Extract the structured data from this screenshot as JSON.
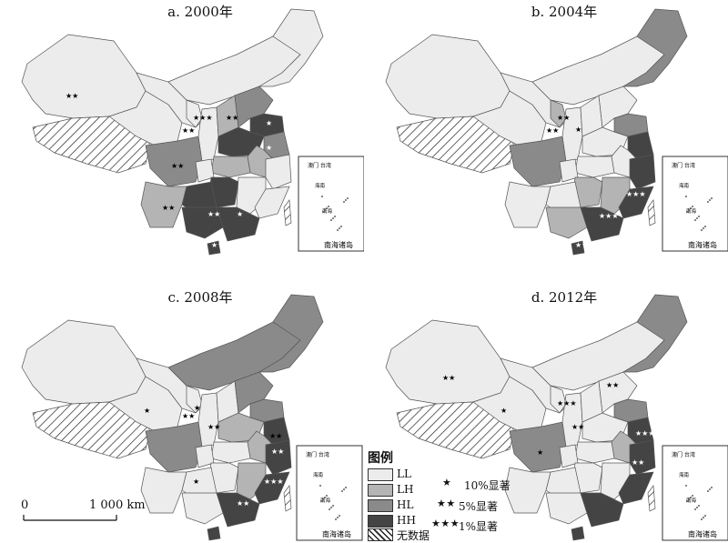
{
  "colors": {
    "LL": "#ececec",
    "LH": "#b4b4b4",
    "HL": "#8a8a8a",
    "HH": "#444444",
    "no_data": "#ffffff",
    "border": "#555555"
  },
  "panels": [
    {
      "id": "a",
      "title": "a. 2000年",
      "regions": {
        "northeast": "LL",
        "inner_mongolia": "LL",
        "hebei": "HL",
        "shandong": "HH",
        "henan": "HH",
        "jiangsu": "HL",
        "anhui": "LH",
        "hubei": "LH",
        "hunan": "HH",
        "jiangxi": "LL",
        "zhejiang": "LL",
        "fujian": "LL",
        "guangdong": "HH",
        "guangxi": "HH",
        "guizhou": "HH",
        "yunnan": "LH",
        "sichuan": "HL",
        "chongqing": "LL",
        "shaanxi": "LL",
        "shanxi": "LH",
        "gansu": "LL",
        "qinghai": "LL",
        "xinjiang": "LL",
        "ningxia": "LL",
        "hainan": "HH"
      }
    },
    {
      "id": "b",
      "title": "b. 2004年",
      "regions": {
        "northeast": "HL",
        "inner_mongolia": "LL",
        "hebei": "LL",
        "shandong": "HL",
        "henan": "LL",
        "jiangsu": "HH",
        "anhui": "LL",
        "hubei": "LL",
        "hunan": "LH",
        "jiangxi": "LH",
        "zhejiang": "HH",
        "fujian": "HH",
        "guangdong": "HH",
        "guangxi": "LH",
        "guizhou": "LL",
        "yunnan": "LL",
        "sichuan": "HL",
        "chongqing": "LL",
        "shaanxi": "LL",
        "shanxi": "LL",
        "gansu": "LL",
        "qinghai": "LL",
        "xinjiang": "LL",
        "ningxia": "LH",
        "hainan": "HH"
      }
    },
    {
      "id": "c",
      "title": "c. 2008年",
      "regions": {
        "northeast": "HL",
        "inner_mongolia": "HL",
        "hebei": "HL",
        "shandong": "HL",
        "henan": "LH",
        "jiangsu": "HH",
        "anhui": "LH",
        "hubei": "LL",
        "hunan": "LL",
        "jiangxi": "LH",
        "zhejiang": "HH",
        "fujian": "HH",
        "guangdong": "HH",
        "guangxi": "LL",
        "guizhou": "LL",
        "yunnan": "LL",
        "sichuan": "HL",
        "chongqing": "LL",
        "shaanxi": "LL",
        "shanxi": "LL",
        "gansu": "LL",
        "qinghai": "LL",
        "xinjiang": "LL",
        "ningxia": "LL",
        "hainan": "HH"
      }
    },
    {
      "id": "d",
      "title": "d. 2012年",
      "regions": {
        "northeast": "HL",
        "inner_mongolia": "LL",
        "hebei": "LL",
        "shandong": "HL",
        "henan": "LL",
        "jiangsu": "HH",
        "anhui": "LH",
        "hubei": "LL",
        "hunan": "LL",
        "jiangxi": "LL",
        "zhejiang": "HH",
        "fujian": "HH",
        "guangdong": "HH",
        "guangxi": "LL",
        "guizhou": "LL",
        "yunnan": "LL",
        "sichuan": "HL",
        "chongqing": "LL",
        "shaanxi": "LL",
        "shanxi": "LL",
        "gansu": "LL",
        "qinghai": "LL",
        "xinjiang": "LL",
        "ningxia": "LL",
        "hainan": "HH"
      }
    }
  ],
  "inset": {
    "top_label": "澳门 台湾",
    "mid_label1": "海南",
    "mid_label2": "南海",
    "title": "南海诸岛"
  },
  "legend": {
    "title": "图例",
    "items": [
      {
        "key": "LL",
        "label": "LL"
      },
      {
        "key": "LH",
        "label": "LH"
      },
      {
        "key": "HL",
        "label": "HL"
      },
      {
        "key": "HH",
        "label": "HH"
      },
      {
        "key": "no_data",
        "label": "无数据"
      }
    ],
    "significance": [
      {
        "stars": "★",
        "label": "10%显著"
      },
      {
        "stars": "★★",
        "label": "5%显著"
      },
      {
        "stars": "★★★",
        "label": "1%显著"
      }
    ]
  },
  "scale_bar": {
    "start": "0",
    "end": "1 000 km"
  }
}
